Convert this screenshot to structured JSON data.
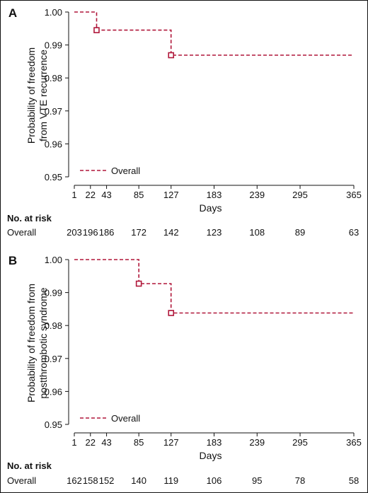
{
  "colors": {
    "curve": "#b0173a",
    "axis": "#111111"
  },
  "panels": [
    {
      "label": "A",
      "ylabel_lines": [
        "Probability of freedom",
        "from VTE recurrence"
      ],
      "xlabel": "Days",
      "legend": "Overall",
      "risk_title": "No. at risk",
      "risk_row_label": "Overall",
      "risk_values": [
        "203",
        "196",
        "186",
        "172",
        "142",
        "123",
        "108",
        "89",
        "63"
      ]
    },
    {
      "label": "B",
      "ylabel_lines": [
        "Probability of freedom from",
        "postthrombotic syndrome"
      ],
      "xlabel": "Days",
      "legend": "Overall",
      "risk_title": "No. at risk",
      "risk_row_label": "Overall",
      "risk_values": [
        "162",
        "158",
        "152",
        "140",
        "119",
        "106",
        "95",
        "78",
        "58"
      ]
    }
  ],
  "chart_data": [
    {
      "type": "line",
      "step": true,
      "series": [
        {
          "name": "Overall",
          "x": [
            1,
            30,
            30,
            127,
            127,
            365
          ],
          "y": [
            1.0,
            1.0,
            0.9945,
            0.9945,
            0.9869,
            0.9869
          ],
          "censored": [
            [
              30,
              0.9945
            ],
            [
              127,
              0.9869
            ]
          ]
        }
      ],
      "xticks": [
        1,
        22,
        43,
        85,
        127,
        183,
        239,
        295,
        365
      ],
      "yticks": [
        "1.00",
        "0.99",
        "0.98",
        "0.97",
        "0.96",
        "0.95"
      ],
      "xlim": [
        1,
        365
      ],
      "ylim": [
        0.95,
        1.0
      ],
      "xlabel": "Days",
      "ylabel": "Probability of freedom from VTE recurrence"
    },
    {
      "type": "line",
      "step": true,
      "series": [
        {
          "name": "Overall",
          "x": [
            1,
            85,
            85,
            127,
            127,
            365
          ],
          "y": [
            1.0,
            1.0,
            0.9927,
            0.9927,
            0.9838,
            0.9838
          ],
          "censored": [
            [
              85,
              0.9927
            ],
            [
              127,
              0.9838
            ]
          ]
        }
      ],
      "xticks": [
        1,
        22,
        43,
        85,
        127,
        183,
        239,
        295,
        365
      ],
      "yticks": [
        "1.00",
        "0.99",
        "0.98",
        "0.97",
        "0.96",
        "0.95"
      ],
      "xlim": [
        1,
        365
      ],
      "ylim": [
        0.95,
        1.0
      ],
      "xlabel": "Days",
      "ylabel": "Probability of freedom from postthrombotic syndrome"
    }
  ]
}
